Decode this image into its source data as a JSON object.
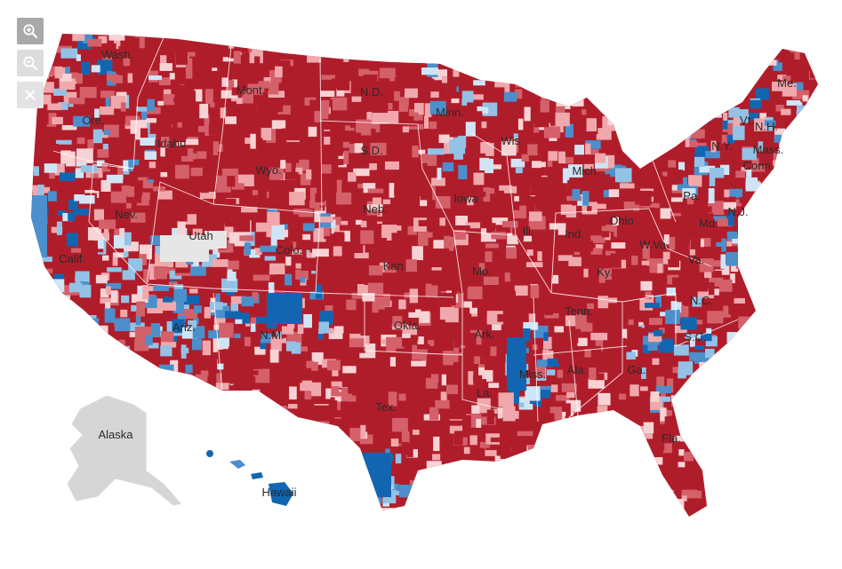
{
  "controls": {
    "zoom_in": "zoom-in-icon",
    "zoom_out": "zoom-out-icon",
    "close": "close-icon"
  },
  "legend_colors": {
    "dark_red": "#b01d2a",
    "mid_red": "#d4606a",
    "light_red": "#f0a8ac",
    "pale_red": "#f8d3d5",
    "pale_blue": "#cfe5f6",
    "light_blue": "#93c2e6",
    "mid_blue": "#4b8fcc",
    "dark_blue": "#1266b1",
    "neutral": "#e6e6e6",
    "inactive": "#d6d6d6"
  },
  "state_labels": [
    {
      "label": "Wash."
    },
    {
      "label": "Ore."
    },
    {
      "label": "Idaho"
    },
    {
      "label": "Mont."
    },
    {
      "label": "Wyo."
    },
    {
      "label": "N.D."
    },
    {
      "label": "S.D."
    },
    {
      "label": "Minn."
    },
    {
      "label": "Wis."
    },
    {
      "label": "Mich."
    },
    {
      "label": "N.Y."
    },
    {
      "label": "Vt."
    },
    {
      "label": "N.H."
    },
    {
      "label": "Me."
    },
    {
      "label": "Mass."
    },
    {
      "label": "Conn."
    },
    {
      "label": "Nev."
    },
    {
      "label": "Calif."
    },
    {
      "label": "Utah"
    },
    {
      "label": "Colo."
    },
    {
      "label": "Neb."
    },
    {
      "label": "Iowa"
    },
    {
      "label": "Ill."
    },
    {
      "label": "Ind."
    },
    {
      "label": "Ohio"
    },
    {
      "label": "Pa."
    },
    {
      "label": "N.J."
    },
    {
      "label": "Md."
    },
    {
      "label": "W.Va."
    },
    {
      "label": "Va."
    },
    {
      "label": "Kan."
    },
    {
      "label": "Mo."
    },
    {
      "label": "Ky."
    },
    {
      "label": "Tenn."
    },
    {
      "label": "N.C."
    },
    {
      "label": "S.C."
    },
    {
      "label": "Ariz."
    },
    {
      "label": "N.M."
    },
    {
      "label": "Okla."
    },
    {
      "label": "Ark."
    },
    {
      "label": "Miss."
    },
    {
      "label": "Ala."
    },
    {
      "label": "Ga."
    },
    {
      "label": "La."
    },
    {
      "label": "Tex."
    },
    {
      "label": "Fla."
    },
    {
      "label": "Alaska"
    },
    {
      "label": "Hawaii"
    }
  ]
}
